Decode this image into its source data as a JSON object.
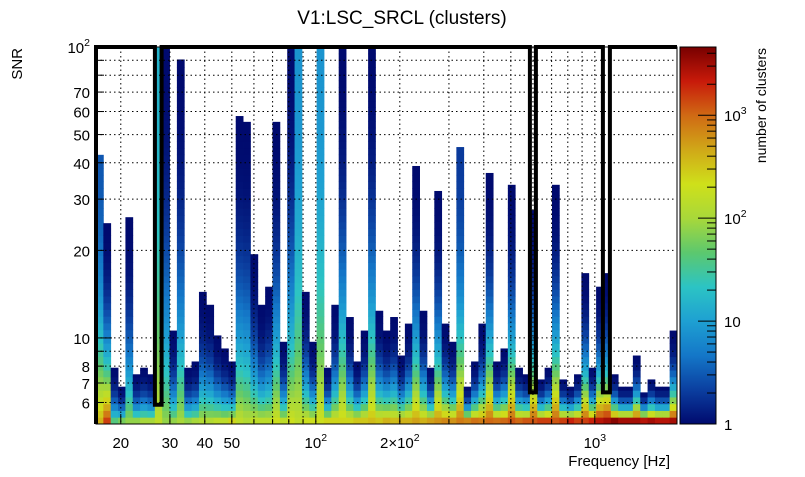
{
  "chart_data": {
    "type": "heatmap",
    "title": "V1:LSC_SRCL (clusters)",
    "xlabel": "Frequency [Hz]",
    "ylabel": "SNR",
    "zlabel": "number of clusters",
    "xscale": "log",
    "yscale": "log",
    "zscale": "log",
    "xlim": [
      16.3,
      1970
    ],
    "ylim": [
      5.06,
      100
    ],
    "zlim": [
      1,
      4600
    ],
    "grid": true,
    "x_ticks": [
      {
        "value": 20,
        "label": "20"
      },
      {
        "value": 30,
        "label": "30"
      },
      {
        "value": 40,
        "label": "40"
      },
      {
        "value": 50,
        "label": "50"
      },
      {
        "value": 100,
        "label": "10^2"
      },
      {
        "value": 200,
        "label": "2×10^2"
      },
      {
        "value": 1000,
        "label": "10^3"
      }
    ],
    "x_grid": [
      20,
      30,
      40,
      50,
      60,
      70,
      80,
      90,
      100,
      200,
      300,
      400,
      500,
      600,
      700,
      800,
      900,
      1000
    ],
    "y_ticks": [
      {
        "value": 6,
        "label": "6"
      },
      {
        "value": 7,
        "label": "7"
      },
      {
        "value": 8,
        "label": "8"
      },
      {
        "value": 10,
        "label": "10"
      },
      {
        "value": 20,
        "label": "20"
      },
      {
        "value": 30,
        "label": "30"
      },
      {
        "value": 40,
        "label": "40"
      },
      {
        "value": 50,
        "label": "50"
      },
      {
        "value": 60,
        "label": "60"
      },
      {
        "value": 70,
        "label": "70"
      },
      {
        "value": 100,
        "label": "10^2"
      }
    ],
    "y_grid": [
      6,
      7,
      8,
      9,
      10,
      20,
      30,
      40,
      50,
      60,
      70,
      80,
      90
    ],
    "z_ticks": [
      {
        "value": 1,
        "label": "1"
      },
      {
        "value": 10,
        "label": "10"
      },
      {
        "value": 100,
        "label": "10^2"
      },
      {
        "value": 1000,
        "label": "10^3"
      }
    ],
    "snr_bins": 56,
    "columns_note": "per log-spaced frequency bin: [max SNR, clusters in lowest SNR bin, clusters in highest SNR bin]",
    "columns": [
      [
        42.6,
        400,
        3
      ],
      [
        24.8,
        1500,
        1
      ],
      [
        7.9,
        40,
        1
      ],
      [
        6.8,
        60,
        1
      ],
      [
        26,
        80,
        1
      ],
      [
        7.5,
        80,
        1
      ],
      [
        7.9,
        100,
        1
      ],
      [
        7.5,
        100,
        1
      ],
      [
        100,
        150,
        15
      ],
      [
        100,
        80,
        1
      ],
      [
        10.6,
        80,
        1
      ],
      [
        90.6,
        100,
        1
      ],
      [
        7.9,
        80,
        1
      ],
      [
        8.3,
        100,
        1
      ],
      [
        14.4,
        120,
        1
      ],
      [
        13,
        120,
        1
      ],
      [
        10.2,
        150,
        1
      ],
      [
        9.2,
        150,
        1
      ],
      [
        8.3,
        250,
        1
      ],
      [
        57.9,
        150,
        1
      ],
      [
        55.3,
        120,
        1
      ],
      [
        19.4,
        150,
        1
      ],
      [
        13,
        150,
        1
      ],
      [
        15,
        150,
        1
      ],
      [
        55.3,
        200,
        1
      ],
      [
        9.7,
        150,
        1
      ],
      [
        100,
        200,
        1
      ],
      [
        100,
        150,
        8
      ],
      [
        14.4,
        200,
        1
      ],
      [
        9.7,
        200,
        1
      ],
      [
        100,
        200,
        8
      ],
      [
        7.9,
        250,
        1
      ],
      [
        13,
        250,
        1
      ],
      [
        100,
        250,
        1
      ],
      [
        11.8,
        250,
        1
      ],
      [
        8.3,
        300,
        1
      ],
      [
        10.6,
        300,
        1
      ],
      [
        100,
        350,
        1
      ],
      [
        12.4,
        300,
        1
      ],
      [
        10.6,
        400,
        1
      ],
      [
        11.8,
        350,
        1
      ],
      [
        8.7,
        400,
        1
      ],
      [
        11.2,
        400,
        1
      ],
      [
        39,
        500,
        1
      ],
      [
        12.4,
        400,
        1
      ],
      [
        7.9,
        500,
        1
      ],
      [
        32,
        600,
        1
      ],
      [
        11.2,
        700,
        1
      ],
      [
        9.7,
        600,
        1
      ],
      [
        45.3,
        800,
        2
      ],
      [
        6.8,
        700,
        1
      ],
      [
        8.3,
        900,
        1
      ],
      [
        11.2,
        800,
        1
      ],
      [
        36.9,
        1000,
        1
      ],
      [
        8.3,
        900,
        1
      ],
      [
        9.2,
        1000,
        1
      ],
      [
        33.6,
        1200,
        1
      ],
      [
        7.9,
        1000,
        1
      ],
      [
        7.5,
        1200,
        1
      ],
      [
        27.5,
        1200,
        1
      ],
      [
        7.2,
        1500,
        1
      ],
      [
        7.9,
        1500,
        1
      ],
      [
        33.6,
        1200,
        1
      ],
      [
        7.2,
        1500,
        1
      ],
      [
        6.8,
        2000,
        1
      ],
      [
        7.5,
        1500,
        1
      ],
      [
        16.7,
        1500,
        1
      ],
      [
        7.9,
        2000,
        1
      ],
      [
        15,
        2500,
        1
      ],
      [
        16.7,
        3000,
        1
      ],
      [
        7.5,
        4000,
        1
      ],
      [
        6.8,
        3000,
        1
      ],
      [
        6.8,
        3000,
        1
      ],
      [
        8.7,
        3000,
        1
      ],
      [
        6.5,
        2500,
        1
      ],
      [
        7.2,
        3000,
        1
      ],
      [
        6.8,
        2500,
        1
      ],
      [
        6.8,
        2500,
        1
      ],
      [
        10.6,
        3000,
        1
      ]
    ],
    "outline": [
      [
        16.3,
        5.06
      ],
      [
        16.3,
        100
      ],
      [
        26.5,
        100
      ],
      [
        26.5,
        5.89
      ],
      [
        28.0,
        5.89
      ],
      [
        28.0,
        100
      ],
      [
        585,
        100
      ],
      [
        585,
        6.5
      ],
      [
        615,
        6.5
      ],
      [
        615,
        100
      ],
      [
        1069,
        100
      ],
      [
        1069,
        6.5
      ],
      [
        1132,
        6.5
      ],
      [
        1132,
        100
      ],
      [
        1970,
        100
      ]
    ],
    "colormap": [
      "#000a6e",
      "#0b3fa0",
      "#1477c8",
      "#1ea0d2",
      "#2cc4c4",
      "#5cc86e",
      "#a8d83a",
      "#cfe01a",
      "#d0a818",
      "#d06a14",
      "#c81a0a",
      "#780000"
    ]
  }
}
